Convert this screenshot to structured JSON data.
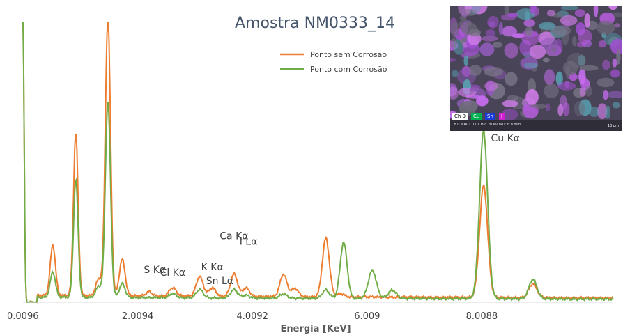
{
  "chart_data": {
    "type": "line",
    "title": "Amostra NM0333_14",
    "xlabel": "Energia [KeV]",
    "ylabel": "",
    "x_ticks": [
      "0.0096",
      "2.0094",
      "4.0092",
      "6.009",
      "8.0088"
    ],
    "x_tick_values": [
      0.0096,
      2.0094,
      4.0092,
      6.009,
      8.0088
    ],
    "xlim": [
      0.0096,
      10.3
    ],
    "ylim": [
      0,
      100
    ],
    "legend_position": "top-center",
    "grid": false,
    "series": [
      {
        "name": "Ponto sem Corrosão",
        "color": "#ed7d31",
        "background": 2.5,
        "peaks": [
          {
            "x": 0.0096,
            "y": 100,
            "w": 0.02
          },
          {
            "x": 0.53,
            "y": 18,
            "w": 0.045
          },
          {
            "x": 0.93,
            "y": 58,
            "w": 0.04
          },
          {
            "x": 1.33,
            "y": 6,
            "w": 0.05
          },
          {
            "x": 1.49,
            "y": 100,
            "w": 0.045
          },
          {
            "x": 1.74,
            "y": 13,
            "w": 0.05
          },
          {
            "x": 2.21,
            "y": 1.5,
            "w": 0.05
          },
          {
            "x": 2.62,
            "y": 3,
            "w": 0.06
          },
          {
            "x": 3.09,
            "y": 7,
            "w": 0.06
          },
          {
            "x": 3.31,
            "y": 3,
            "w": 0.06
          },
          {
            "x": 3.69,
            "y": 8,
            "w": 0.06
          },
          {
            "x": 3.9,
            "y": 3,
            "w": 0.06
          },
          {
            "x": 4.55,
            "y": 8,
            "w": 0.06
          },
          {
            "x": 4.75,
            "y": 3,
            "w": 0.06
          },
          {
            "x": 5.29,
            "y": 21,
            "w": 0.06
          },
          {
            "x": 5.55,
            "y": 1.2,
            "w": 0.06
          },
          {
            "x": 8.04,
            "y": 40,
            "w": 0.07
          },
          {
            "x": 8.9,
            "y": 5,
            "w": 0.07
          }
        ]
      },
      {
        "name": "Ponto com Corrosão",
        "color": "#70ad47",
        "background": 1.8,
        "peaks": [
          {
            "x": 0.0096,
            "y": 100,
            "w": 0.02
          },
          {
            "x": 0.53,
            "y": 9,
            "w": 0.045
          },
          {
            "x": 0.93,
            "y": 42,
            "w": 0.04
          },
          {
            "x": 1.33,
            "y": 4,
            "w": 0.05
          },
          {
            "x": 1.49,
            "y": 70,
            "w": 0.045
          },
          {
            "x": 1.74,
            "y": 5,
            "w": 0.05
          },
          {
            "x": 2.62,
            "y": 1.5,
            "w": 0.06
          },
          {
            "x": 3.09,
            "y": 3,
            "w": 0.06
          },
          {
            "x": 3.69,
            "y": 3,
            "w": 0.06
          },
          {
            "x": 3.9,
            "y": 1,
            "w": 0.06
          },
          {
            "x": 4.55,
            "y": 1.5,
            "w": 0.06
          },
          {
            "x": 5.29,
            "y": 3,
            "w": 0.06
          },
          {
            "x": 5.6,
            "y": 20,
            "w": 0.06
          },
          {
            "x": 6.1,
            "y": 10,
            "w": 0.07
          },
          {
            "x": 6.45,
            "y": 3,
            "w": 0.07
          },
          {
            "x": 8.04,
            "y": 60,
            "w": 0.07
          },
          {
            "x": 8.9,
            "y": 7,
            "w": 0.07
          }
        ]
      }
    ],
    "annotations": [
      {
        "text": "S Kα",
        "x": 2.31,
        "y": 10.5
      },
      {
        "text": "Cl Kα",
        "x": 2.62,
        "y": 9.5
      },
      {
        "text": "K Kα",
        "x": 3.31,
        "y": 11.5
      },
      {
        "text": "Sn Lα",
        "x": 3.44,
        "y": 6.5
      },
      {
        "text": "Ca Kα",
        "x": 3.69,
        "y": 22.5
      },
      {
        "text": "I Lα",
        "x": 3.94,
        "y": 20.5
      },
      {
        "text": "Cu Kα",
        "x": 8.42,
        "y": 57.5
      }
    ]
  },
  "inset": {
    "channels": [
      {
        "label": "Ch 0",
        "color": "#ffffff",
        "text_color": "#000000"
      },
      {
        "label": "Cu",
        "color": "#00b050"
      },
      {
        "label": "Sn",
        "color": "#1c3ad6"
      },
      {
        "label": "I",
        "color": "#d020d0"
      }
    ],
    "metadata": "Ch 0   MAG: 100x   HV: 20 kV   WD: 8.0 mm",
    "scale_text": "10 µm"
  }
}
